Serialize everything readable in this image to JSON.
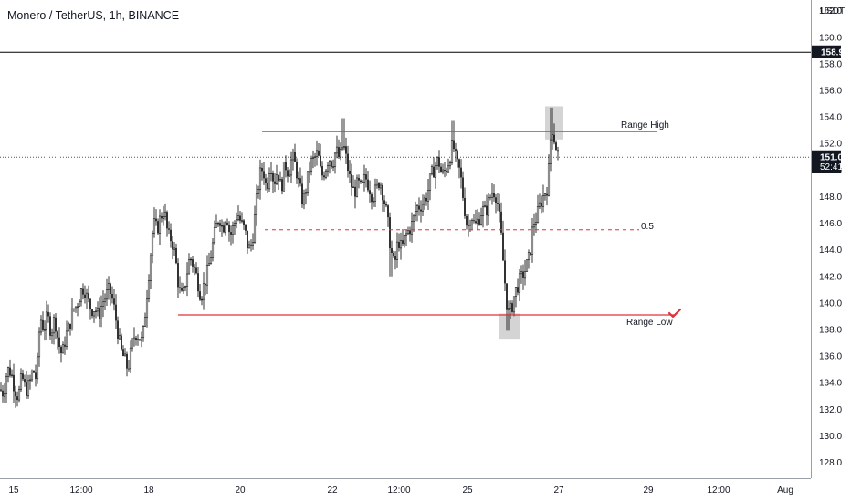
{
  "header": {
    "symbol_title": "Monero / TetherUS, 1h, BINANCE"
  },
  "price_axis": {
    "unit": "USDT",
    "ticks": [
      "128.0",
      "130.0",
      "132.0",
      "134.0",
      "136.0",
      "138.0",
      "140.0",
      "142.0",
      "144.0",
      "146.0",
      "148.0",
      "150.0",
      "152.0",
      "154.0",
      "156.0",
      "158.0",
      "160.0",
      "162.0"
    ],
    "current_price_label": "151.0",
    "countdown_label": "52:41",
    "horizontal_line_label": "158.9"
  },
  "time_axis": {
    "ticks": [
      "15",
      "12:00",
      "18",
      "20",
      "22",
      "12:00",
      "25",
      "27",
      "29",
      "12:00",
      "Aug"
    ]
  },
  "annotations": {
    "range_high_label": "Range High",
    "range_low_label": "Range Low",
    "mid_label": "0.5"
  },
  "colors": {
    "candle": "#000000",
    "range_lines": "#e0313d",
    "horizontal_line": "#000000",
    "current_price_line": "#555555",
    "badge_bg": "#131722",
    "highlight_box": "#b8b8b8",
    "checkmark": "#e0313d"
  },
  "chart_data": {
    "type": "candlestick",
    "title": "Monero / TetherUS, 1h, BINANCE",
    "y_unit": "USDT",
    "ylim": [
      126.8,
      162.8
    ],
    "x_ticks": [
      "15",
      "12:00",
      "18",
      "20",
      "22",
      "12:00",
      "25",
      "27",
      "29",
      "12:00",
      "Aug"
    ],
    "close_path": [
      [
        0,
        133.5
      ],
      [
        4,
        133.2
      ],
      [
        8,
        135.0
      ],
      [
        12,
        134.8
      ],
      [
        16,
        133.6
      ],
      [
        20,
        132.9
      ],
      [
        24,
        134.5
      ],
      [
        28,
        133.4
      ],
      [
        32,
        133.8
      ],
      [
        36,
        135.0
      ],
      [
        40,
        134.2
      ],
      [
        44,
        139.0
      ],
      [
        48,
        138.0
      ],
      [
        52,
        139.0
      ],
      [
        56,
        137.8
      ],
      [
        60,
        138.9
      ],
      [
        64,
        137.0
      ],
      [
        68,
        136.0
      ],
      [
        72,
        137.5
      ],
      [
        76,
        138.2
      ],
      [
        80,
        139.5
      ],
      [
        84,
        139.8
      ],
      [
        88,
        140.8
      ],
      [
        92,
        141.2
      ],
      [
        96,
        140.2
      ],
      [
        100,
        139.5
      ],
      [
        104,
        139.6
      ],
      [
        108,
        139.0
      ],
      [
        112,
        140.0
      ],
      [
        116,
        140.5
      ],
      [
        120,
        141.0
      ],
      [
        124,
        140.0
      ],
      [
        128,
        138.3
      ],
      [
        132,
        136.5
      ],
      [
        136,
        135.8
      ],
      [
        140,
        135.0
      ],
      [
        144,
        136.5
      ],
      [
        148,
        137.8
      ],
      [
        152,
        137.5
      ],
      [
        156,
        137.0
      ],
      [
        160,
        140.0
      ],
      [
        164,
        143.0
      ],
      [
        168,
        146.0
      ],
      [
        172,
        145.5
      ],
      [
        176,
        146.5
      ],
      [
        180,
        147.0
      ],
      [
        184,
        145.0
      ],
      [
        188,
        144.8
      ],
      [
        192,
        143.5
      ],
      [
        196,
        141.0
      ],
      [
        200,
        140.3
      ],
      [
        204,
        142.0
      ],
      [
        208,
        143.5
      ],
      [
        212,
        142.8
      ],
      [
        216,
        141.8
      ],
      [
        220,
        140.5
      ],
      [
        224,
        141.5
      ],
      [
        228,
        142.5
      ],
      [
        232,
        144.0
      ],
      [
        236,
        145.5
      ],
      [
        240,
        146.6
      ],
      [
        244,
        145.5
      ],
      [
        248,
        146.8
      ],
      [
        252,
        145.0
      ],
      [
        256,
        145.8
      ],
      [
        260,
        146.8
      ],
      [
        264,
        146.0
      ],
      [
        268,
        145.5
      ],
      [
        272,
        144.0
      ],
      [
        276,
        144.5
      ],
      [
        280,
        147.0
      ],
      [
        284,
        149.5
      ],
      [
        288,
        150.2
      ],
      [
        292,
        148.5
      ],
      [
        296,
        150.8
      ],
      [
        300,
        149.0
      ],
      [
        304,
        150.0
      ],
      [
        308,
        148.5
      ],
      [
        312,
        150.5
      ],
      [
        316,
        149.8
      ],
      [
        320,
        151.0
      ],
      [
        324,
        150.2
      ],
      [
        328,
        148.7
      ],
      [
        332,
        147.5
      ],
      [
        336,
        149.0
      ],
      [
        340,
        150.5
      ],
      [
        344,
        150.8
      ],
      [
        348,
        151.3
      ],
      [
        352,
        149.5
      ],
      [
        356,
        150.0
      ],
      [
        360,
        151.0
      ],
      [
        364,
        150.5
      ],
      [
        368,
        151.5
      ],
      [
        372,
        150.8
      ],
      [
        376,
        152.0
      ],
      [
        380,
        150.5
      ],
      [
        384,
        149.0
      ],
      [
        388,
        148.3
      ],
      [
        392,
        149.0
      ],
      [
        396,
        148.5
      ],
      [
        400,
        149.5
      ],
      [
        404,
        148.8
      ],
      [
        408,
        148.0
      ],
      [
        412,
        148.5
      ],
      [
        416,
        149.3
      ],
      [
        420,
        148.0
      ],
      [
        424,
        146.5
      ],
      [
        428,
        144.0
      ],
      [
        432,
        142.7
      ],
      [
        436,
        144.8
      ],
      [
        440,
        144.0
      ],
      [
        444,
        145.0
      ],
      [
        448,
        145.5
      ],
      [
        452,
        146.0
      ],
      [
        456,
        147.2
      ],
      [
        460,
        147.3
      ],
      [
        464,
        147.6
      ],
      [
        468,
        148.2
      ],
      [
        472,
        149.5
      ],
      [
        476,
        150.2
      ],
      [
        480,
        150.8
      ],
      [
        484,
        149.6
      ],
      [
        488,
        150.0
      ],
      [
        492,
        150.8
      ],
      [
        496,
        152.0
      ],
      [
        500,
        150.5
      ],
      [
        504,
        149.8
      ],
      [
        508,
        147.5
      ],
      [
        512,
        145.5
      ],
      [
        516,
        146.8
      ],
      [
        520,
        145.7
      ],
      [
        524,
        146.3
      ],
      [
        528,
        147.0
      ],
      [
        532,
        146.8
      ],
      [
        536,
        147.8
      ],
      [
        540,
        148.5
      ],
      [
        544,
        148.0
      ],
      [
        548,
        145.8
      ],
      [
        552,
        142.3
      ],
      [
        556,
        139.2
      ],
      [
        560,
        139.5
      ],
      [
        564,
        140.8
      ],
      [
        568,
        141.5
      ],
      [
        572,
        142.0
      ],
      [
        576,
        142.6
      ],
      [
        580,
        143.5
      ],
      [
        584,
        146.0
      ],
      [
        588,
        146.5
      ],
      [
        592,
        147.5
      ],
      [
        596,
        148.2
      ],
      [
        600,
        148.8
      ],
      [
        604,
        153.5
      ],
      [
        608,
        152.0
      ],
      [
        612,
        151.0
      ]
    ],
    "range_high": 152.9,
    "range_low": 139.1,
    "mid_0_5": 145.5,
    "recent_high": 154.7,
    "range_low_sweep_low": 137.9,
    "horizontal_line": 158.9,
    "current_price": 151.0
  }
}
